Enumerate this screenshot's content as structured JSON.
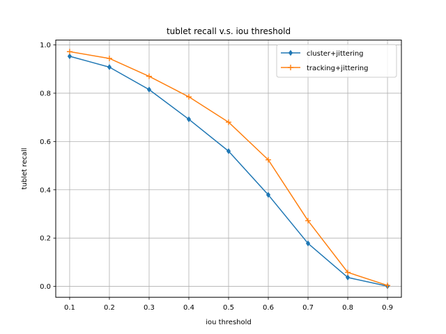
{
  "chart_data": {
    "type": "line",
    "title": "tublet recall v.s. iou threshold",
    "xlabel": "iou threshold",
    "ylabel": "tublet recall",
    "x": [
      0.1,
      0.2,
      0.3,
      0.4,
      0.5,
      0.6,
      0.7,
      0.8,
      0.9
    ],
    "xticks": [
      "0.1",
      "0.2",
      "0.3",
      "0.4",
      "0.5",
      "0.6",
      "0.7",
      "0.8",
      "0.9"
    ],
    "yticks": [
      "0.0",
      "0.2",
      "0.4",
      "0.6",
      "0.8",
      "1.0"
    ],
    "xlim": [
      0.065,
      0.935
    ],
    "ylim": [
      -0.045,
      1.02
    ],
    "grid": true,
    "legend_position": "top-right",
    "series": [
      {
        "name": "cluster+jittering",
        "color": "#1f77b4",
        "marker": "thin-diamond",
        "values": [
          0.953,
          0.908,
          0.815,
          0.692,
          0.56,
          0.379,
          0.178,
          0.037,
          0.001
        ]
      },
      {
        "name": "tracking+jittering",
        "color": "#ff7f0e",
        "marker": "plus",
        "values": [
          0.972,
          0.944,
          0.87,
          0.785,
          0.68,
          0.524,
          0.272,
          0.058,
          0.004
        ]
      }
    ]
  }
}
